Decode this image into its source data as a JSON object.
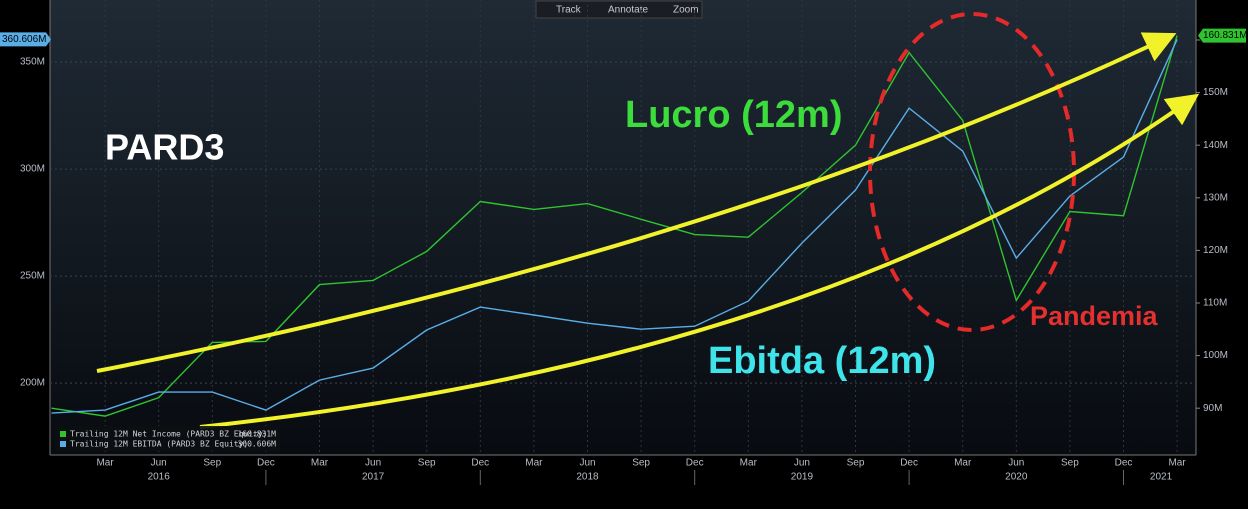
{
  "toolbar": [
    "Track",
    "Annotate",
    "Zoom"
  ],
  "chart_data": {
    "type": "line",
    "categories": [
      null,
      "Mar",
      "Jun",
      "Sep",
      "Dec",
      "Mar",
      "Jun",
      "Sep",
      "Dec",
      "Mar",
      "Jun",
      "Sep",
      "Dec",
      "Mar",
      "Jun",
      "Sep",
      "Dec",
      "Mar",
      "Jun",
      "Sep",
      "Dec",
      "Mar"
    ],
    "year_labels": [
      "2016",
      "2017",
      "2018",
      "2019",
      "2020",
      "2021"
    ],
    "annotations": [
      "PARD3",
      "Lucro (12m)",
      "Ebitda (12m)",
      "Pandemia"
    ],
    "series": [
      {
        "name": "Trailing 12M Net Income (PARD3 BZ Equity)",
        "color": "#2fc42f",
        "axis": "y2",
        "values": [
          90.0,
          88.5,
          92.0,
          102.5,
          102.7,
          113.5,
          114.3,
          119.8,
          129.3,
          127.8,
          128.9,
          125.9,
          123.0,
          122.5,
          131.0,
          140.0,
          157.6,
          144.7,
          110.5,
          127.4,
          126.6,
          160.831
        ],
        "value_labels": [
          null,
          null,
          null,
          null,
          null,
          null,
          null,
          null,
          null,
          null,
          null,
          null,
          null,
          null,
          null,
          null,
          null,
          null,
          null,
          null,
          null,
          "160.831M"
        ]
      },
      {
        "name": "Trailing 12M EBITDA (PARD3 BZ Equity)",
        "color": "#5aaee8",
        "values": [
          186.0,
          187.4,
          195.8,
          195.8,
          187.4,
          201.4,
          207.0,
          224.8,
          235.5,
          231.8,
          228.0,
          225.2,
          226.6,
          238.3,
          265.4,
          290.2,
          328.5,
          308.4,
          258.4,
          287.4,
          305.6,
          360.606
        ],
        "value_labels": [
          null,
          null,
          null,
          null,
          null,
          null,
          null,
          null,
          null,
          null,
          null,
          null,
          null,
          null,
          null,
          null,
          null,
          null,
          null,
          null,
          null,
          "360.606M"
        ]
      }
    ],
    "ylim": [
      166.4,
      379
    ],
    "yticks": [
      {
        "value": 200,
        "label": "200M"
      },
      {
        "value": 250,
        "label": "250M"
      },
      {
        "value": 300,
        "label": "300M"
      },
      {
        "value": 350,
        "label": "350M"
      }
    ],
    "y2lim": [
      81.1,
      167.6
    ],
    "y2ticks": [
      {
        "value": 90,
        "label": "90M"
      },
      {
        "value": 100,
        "label": "100M"
      },
      {
        "value": 110,
        "label": "110M"
      },
      {
        "value": 120,
        "label": "120M"
      },
      {
        "value": 130,
        "label": "130M"
      },
      {
        "value": 140,
        "label": "140M"
      },
      {
        "value": 150,
        "label": "150M"
      },
      {
        "value": 160,
        "label": "160M"
      }
    ],
    "grid": true
  }
}
